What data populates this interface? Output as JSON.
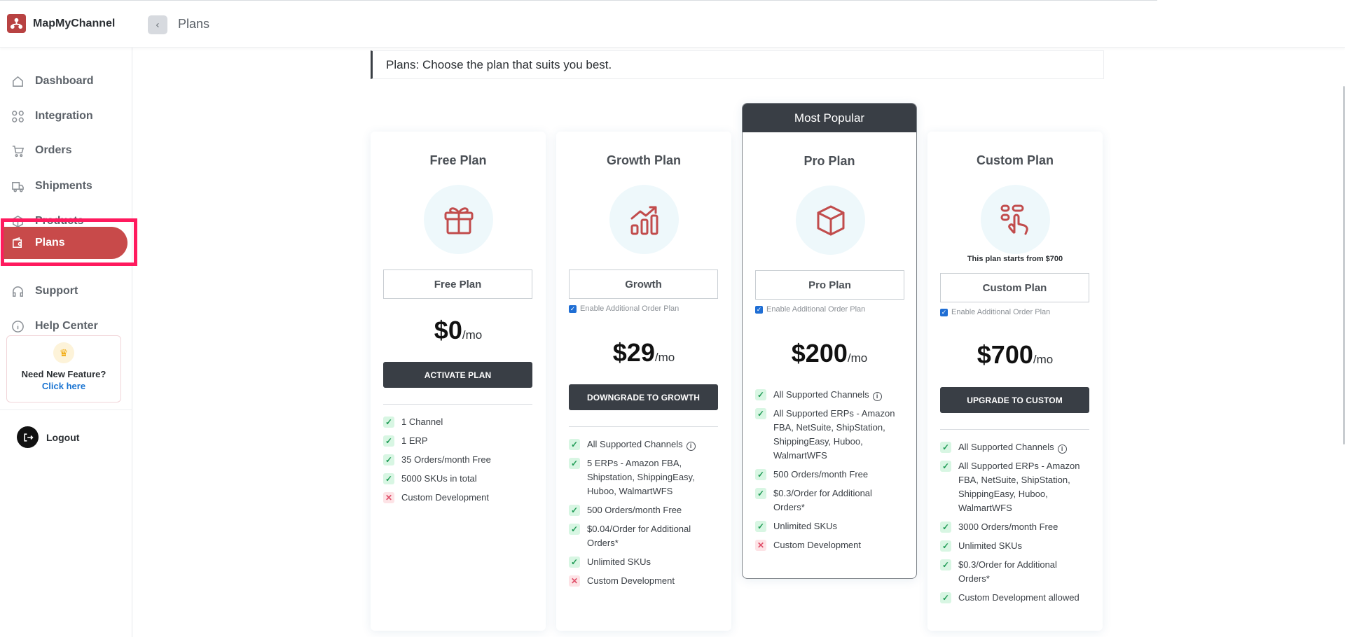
{
  "app": {
    "name": "MapMyChannel"
  },
  "breadcrumb": {
    "back_icon": "chevron-left-icon",
    "title": "Plans"
  },
  "sidebar": {
    "items": [
      {
        "label": "Dashboard",
        "icon": "home-icon"
      },
      {
        "label": "Integration",
        "icon": "grid-icon"
      },
      {
        "label": "Orders",
        "icon": "cart-icon"
      },
      {
        "label": "Shipments",
        "icon": "truck-icon"
      },
      {
        "label": "Products",
        "icon": "box-icon"
      },
      {
        "label": "Plans",
        "icon": "wallet-icon",
        "active": true
      },
      {
        "label": "Support",
        "icon": "headset-icon"
      },
      {
        "label": "Help Center",
        "icon": "info-icon"
      }
    ],
    "feature_card": {
      "title": "Need New Feature?",
      "link": "Click here",
      "icon": "crown-icon"
    },
    "logout": {
      "label": "Logout",
      "icon": "logout-icon"
    }
  },
  "header": {
    "text": "Plans: Choose the plan that suits you best."
  },
  "colors": {
    "accent": "#c84a4a",
    "dark": "#393e45",
    "check": "#1f9b55",
    "cross": "#e0506a",
    "highlight": "#ff1a5e"
  },
  "plans": [
    {
      "name": "Free Plan",
      "icon": "gift-icon",
      "select": "Free Plan",
      "price": "$0",
      "unit": "/mo",
      "cta": "ACTIVATE PLAN",
      "features": [
        {
          "text": "1 Channel",
          "included": true
        },
        {
          "text": "1 ERP",
          "included": true
        },
        {
          "text": "35 Orders/month Free",
          "included": true
        },
        {
          "text": "5000 SKUs in total",
          "included": true
        },
        {
          "text": "Custom Development",
          "included": false
        }
      ]
    },
    {
      "name": "Growth Plan",
      "icon": "growth-chart-icon",
      "select": "Growth",
      "addon": "Enable Additional Order Plan",
      "price": "$29",
      "unit": "/mo",
      "cta": "DOWNGRADE TO GROWTH",
      "features": [
        {
          "text": "All Supported Channels",
          "included": true,
          "info": true
        },
        {
          "text": "5 ERPs - Amazon FBA, Shipstation, ShippingEasy, Huboo, WalmartWFS",
          "included": true
        },
        {
          "text": "500 Orders/month Free",
          "included": true
        },
        {
          "text": "$0.04/Order for Additional Orders*",
          "included": true
        },
        {
          "text": "Unlimited SKUs",
          "included": true
        },
        {
          "text": "Custom Development",
          "included": false
        }
      ]
    },
    {
      "name": "Pro Plan",
      "badge": "Most Popular",
      "icon": "cube-icon",
      "select": "Pro Plan",
      "addon": "Enable Additional Order Plan",
      "price": "$200",
      "unit": "/mo",
      "features": [
        {
          "text": "All Supported Channels",
          "included": true,
          "info": true
        },
        {
          "text": "All Supported ERPs - Amazon FBA, NetSuite, ShipStation, ShippingEasy, Huboo, WalmartWFS",
          "included": true
        },
        {
          "text": "500 Orders/month Free",
          "included": true
        },
        {
          "text": "$0.3/Order for Additional Orders*",
          "included": true
        },
        {
          "text": "Unlimited SKUs",
          "included": true
        },
        {
          "text": "Custom Development",
          "included": false
        }
      ]
    },
    {
      "name": "Custom Plan",
      "icon": "hand-tap-icon",
      "note": "This plan starts from $700",
      "select": "Custom Plan",
      "addon": "Enable Additional Order Plan",
      "price": "$700",
      "unit": "/mo",
      "cta": "UPGRADE TO CUSTOM",
      "features": [
        {
          "text": "All Supported Channels",
          "included": true,
          "info": true
        },
        {
          "text": "All Supported ERPs - Amazon FBA, NetSuite, ShipStation, ShippingEasy, Huboo, WalmartWFS",
          "included": true
        },
        {
          "text": "3000 Orders/month Free",
          "included": true
        },
        {
          "text": "Unlimited SKUs",
          "included": true
        },
        {
          "text": "$0.3/Order for Additional Orders*",
          "included": true
        },
        {
          "text": "Custom Development allowed",
          "included": true
        }
      ]
    }
  ]
}
